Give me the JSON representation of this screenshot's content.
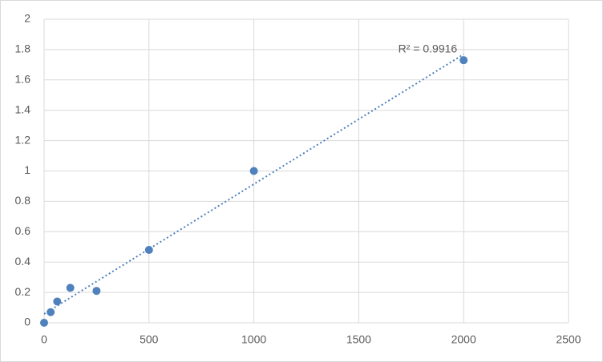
{
  "chart_data": {
    "type": "scatter",
    "series": [
      {
        "name": null,
        "color": "#4f81bd",
        "x": [
          0,
          31.25,
          62.5,
          125,
          250,
          500,
          1000,
          2000
        ],
        "values": [
          0,
          0.07,
          0.14,
          0.23,
          0.21,
          0.48,
          1.0,
          1.73
        ]
      }
    ],
    "trendline": "linear",
    "annotation": "R² = 0.9916",
    "xlim": [
      0,
      2500
    ],
    "xticks": [
      0,
      500,
      1000,
      1500,
      2000,
      2500
    ],
    "ylim": [
      0,
      2
    ],
    "yticks": [
      0,
      0.2,
      0.4,
      0.6,
      0.8,
      1,
      1.2,
      1.4,
      1.6,
      1.8,
      2
    ],
    "grid": true
  }
}
